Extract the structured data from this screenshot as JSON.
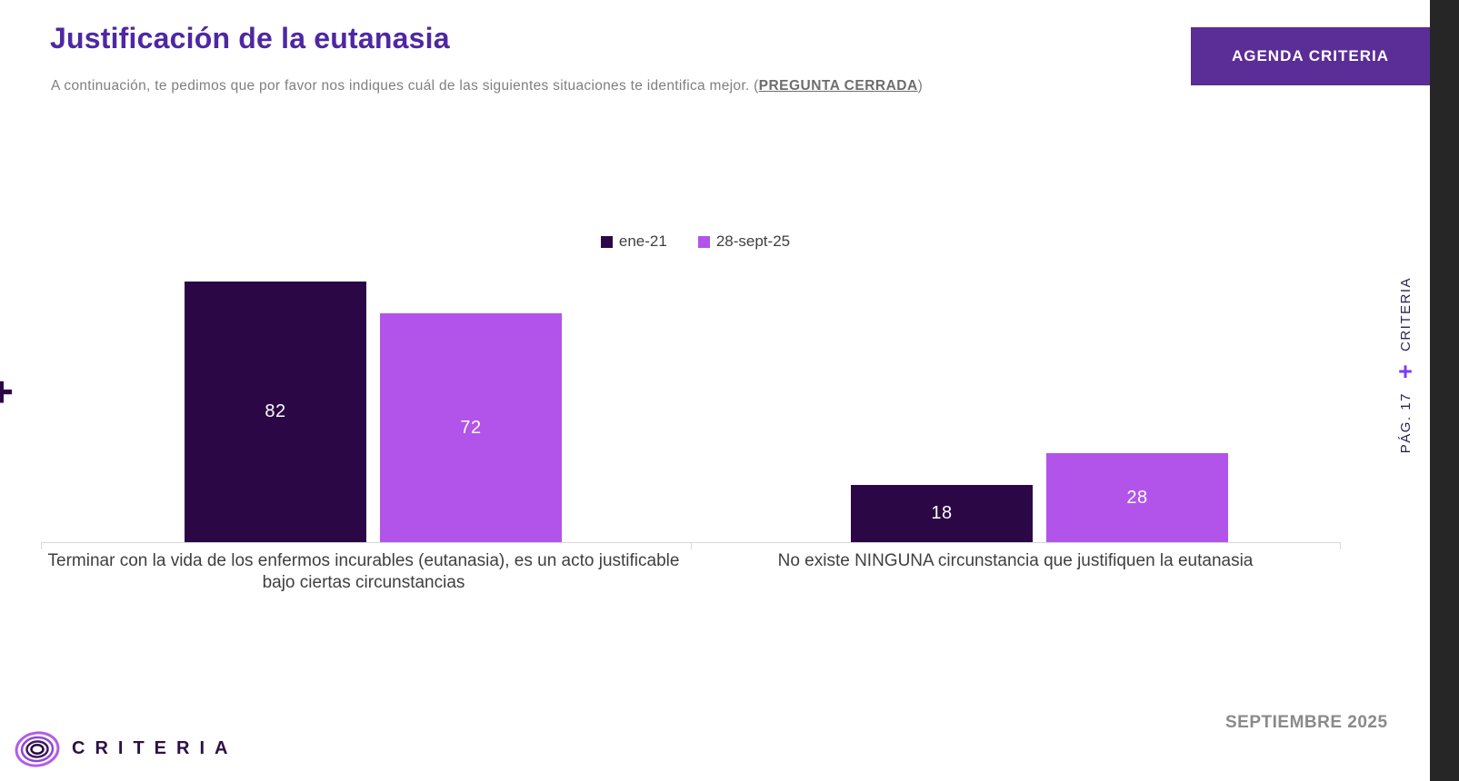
{
  "slide": {
    "title": "Justificación de la eutanasia",
    "subtitle_prefix": "A continuación, te pedimos que por favor nos indiques cuál de las siguientes situaciones te identifica mejor. (",
    "subtitle_emphasis": "PREGUNTA CERRADA",
    "subtitle_suffix": ")",
    "agenda_button": "AGENDA CRITERIA",
    "footer_date": "SEPTIEMBRE 2025",
    "logo_text": "CRITERIA"
  },
  "sidebar": {
    "vertical_brand": "CRITERIA",
    "vertical_plus": "+",
    "vertical_page": "PÁG. 17"
  },
  "decoration": {
    "left_plus": "+"
  },
  "colors": {
    "title_purple": "#4e28a2",
    "button_purple": "#5b2d96",
    "series_dark": "#2b0845",
    "series_light": "#b254e9",
    "right_strip": "#262626",
    "axis_gray": "#d9d9d9"
  },
  "chart_data": {
    "type": "bar",
    "title": "Justificación de la eutanasia",
    "categories": [
      "Terminar con la vida de los enfermos incurables (eutanasia), es un acto justificable bajo ciertas circunstancias",
      "No existe NINGUNA circunstancia que justifiquen la eutanasia"
    ],
    "series": [
      {
        "name": "ene-21",
        "color": "#2b0845",
        "values": [
          82,
          18
        ]
      },
      {
        "name": "28-sept-25",
        "color": "#b254e9",
        "values": [
          72,
          28
        ]
      }
    ],
    "xlabel": "",
    "ylabel": "",
    "ylim": [
      0,
      100
    ],
    "grid": false,
    "legend_position": "top-center",
    "data_labels": "inside-center-white"
  }
}
